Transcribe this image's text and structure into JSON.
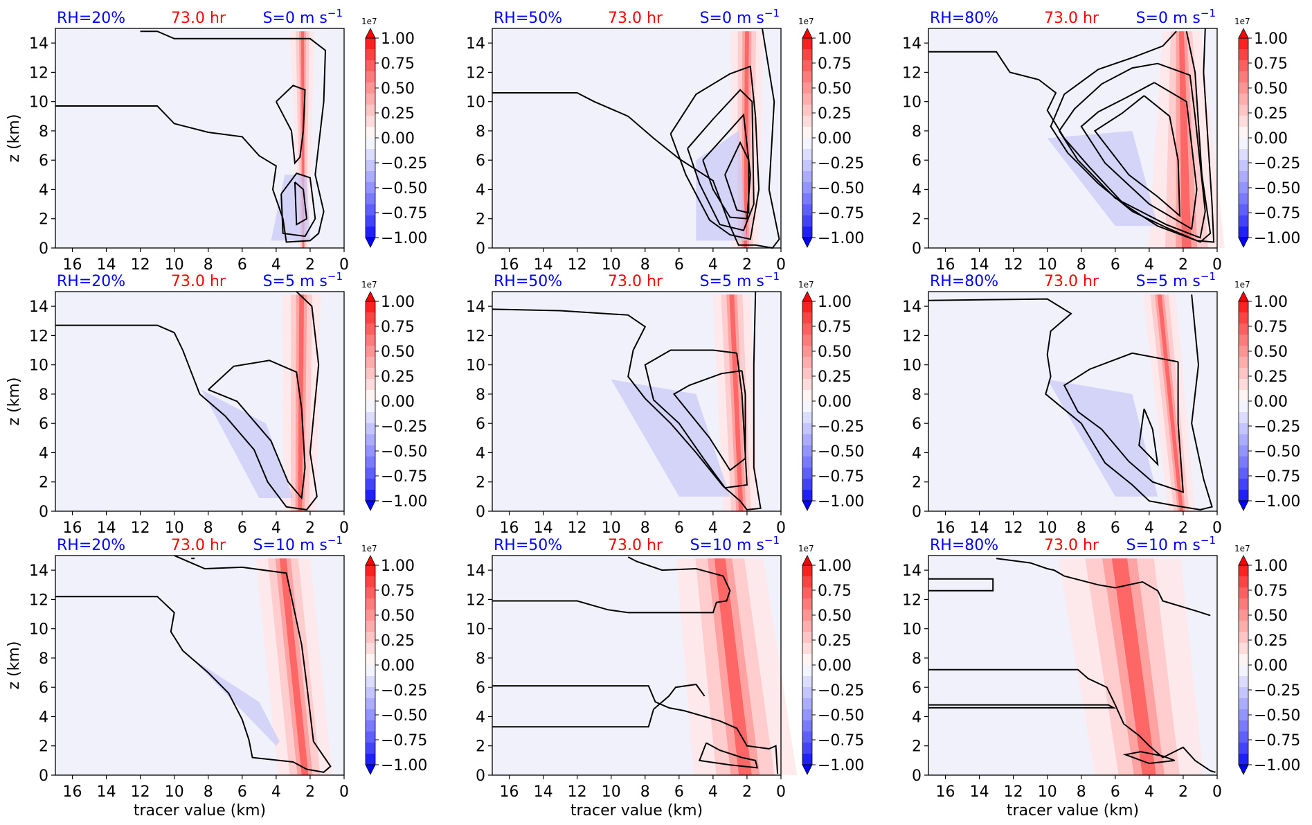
{
  "figure": {
    "y_axis_label": "z (km)",
    "x_axis_label": "tracer value (km)",
    "time_label": "73.0 hr",
    "colorbar_multiplier": "1e7",
    "colorbar_ticks": [
      "1.00",
      "0.75",
      "0.50",
      "0.25",
      "0.00",
      "−0.25",
      "−0.50",
      "−0.75",
      "−1.00"
    ],
    "x_tick_labels": [
      "16",
      "14",
      "12",
      "10",
      "8",
      "6",
      "4",
      "2",
      "0"
    ],
    "y_tick_labels": [
      "0",
      "2",
      "4",
      "6",
      "8",
      "10",
      "12",
      "14"
    ],
    "colors": {
      "rh_label": "#0000ff",
      "time_label": "#ff0000",
      "shear_label": "#0000ff",
      "background_field": "#f1f1fb",
      "contour": "#000000"
    }
  },
  "chart_data": [
    {
      "type": "contour",
      "rh": "RH=20%",
      "time": "73.0 hr",
      "shear": "S=0 m s",
      "shear_exp": "−1",
      "xlim": [
        17,
        0
      ],
      "ylim": [
        0,
        15
      ],
      "colorbar_range": [
        -1.0,
        1.0
      ]
    },
    {
      "type": "contour",
      "rh": "RH=50%",
      "time": "73.0 hr",
      "shear": "S=0 m s",
      "shear_exp": "−1",
      "xlim": [
        17,
        0
      ],
      "ylim": [
        0,
        15
      ],
      "colorbar_range": [
        -1.0,
        1.0
      ]
    },
    {
      "type": "contour",
      "rh": "RH=80%",
      "time": "73.0 hr",
      "shear": "S=0 m s",
      "shear_exp": "−1",
      "xlim": [
        17,
        0
      ],
      "ylim": [
        0,
        15
      ],
      "colorbar_range": [
        -1.0,
        1.0
      ]
    },
    {
      "type": "contour",
      "rh": "RH=20%",
      "time": "73.0 hr",
      "shear": "S=5 m s",
      "shear_exp": "−1",
      "xlim": [
        17,
        0
      ],
      "ylim": [
        0,
        15
      ],
      "colorbar_range": [
        -1.0,
        1.0
      ]
    },
    {
      "type": "contour",
      "rh": "RH=50%",
      "time": "73.0 hr",
      "shear": "S=5 m s",
      "shear_exp": "−1",
      "xlim": [
        17,
        0
      ],
      "ylim": [
        0,
        15
      ],
      "colorbar_range": [
        -1.0,
        1.0
      ]
    },
    {
      "type": "contour",
      "rh": "RH=80%",
      "time": "73.0 hr",
      "shear": "S=5 m s",
      "shear_exp": "−1",
      "xlim": [
        17,
        0
      ],
      "ylim": [
        0,
        15
      ],
      "colorbar_range": [
        -1.0,
        1.0
      ]
    },
    {
      "type": "contour",
      "rh": "RH=20%",
      "time": "73.0 hr",
      "shear": "S=10 m s",
      "shear_exp": "−1",
      "xlim": [
        17,
        0
      ],
      "ylim": [
        0,
        15
      ],
      "colorbar_range": [
        -1.0,
        1.0
      ]
    },
    {
      "type": "contour",
      "rh": "RH=50%",
      "time": "73.0 hr",
      "shear": "S=10 m s",
      "shear_exp": "−1",
      "xlim": [
        17,
        0
      ],
      "ylim": [
        0,
        15
      ],
      "colorbar_range": [
        -1.0,
        1.0
      ]
    },
    {
      "type": "contour",
      "rh": "RH=80%",
      "time": "73.0 hr",
      "shear": "S=10 m s",
      "shear_exp": "−1",
      "xlim": [
        17,
        0
      ],
      "ylim": [
        0,
        15
      ],
      "colorbar_range": [
        -1.0,
        1.0
      ]
    }
  ]
}
